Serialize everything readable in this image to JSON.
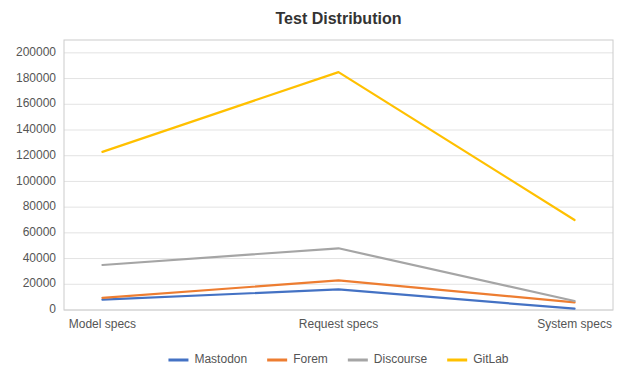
{
  "chart_data": {
    "type": "line",
    "title": "Test Distribution",
    "categories": [
      "Model specs",
      "Request specs",
      "System specs"
    ],
    "series": [
      {
        "name": "Mastodon",
        "color": "#4472C4",
        "values": [
          8000,
          16000,
          1000
        ]
      },
      {
        "name": "Forem",
        "color": "#ED7D31",
        "values": [
          9500,
          23000,
          6000
        ]
      },
      {
        "name": "Discourse",
        "color": "#A5A5A5",
        "values": [
          35000,
          48000,
          7000
        ]
      },
      {
        "name": "GitLab",
        "color": "#FFC000",
        "values": [
          123000,
          185000,
          70000
        ]
      }
    ],
    "ylim": [
      0,
      210000
    ],
    "yticks": [
      0,
      20000,
      40000,
      60000,
      80000,
      100000,
      120000,
      140000,
      160000,
      180000,
      200000
    ],
    "grid": true,
    "legend": "bottom"
  }
}
